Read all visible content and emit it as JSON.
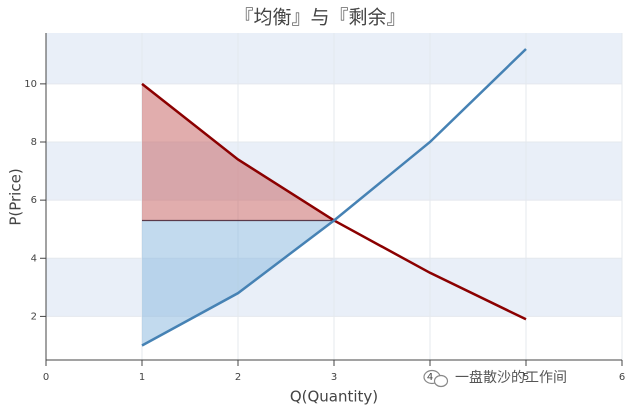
{
  "chart_data": {
    "type": "line",
    "title": "『均衡』与『剩余』",
    "x_label": "Q(Quantity)",
    "y_label": "P(Price)",
    "x": [
      1,
      2,
      3,
      4,
      5
    ],
    "series": [
      {
        "color": "#8b0000",
        "fill": "#c96a6a",
        "values": [
          10,
          7.4,
          5.3,
          3.5,
          1.9
        ]
      },
      {
        "color": "#4682b4",
        "fill": "#8fbbe0",
        "values": [
          1,
          2.8,
          5.3,
          8,
          11.2
        ]
      }
    ],
    "equilibrium": {
      "quantity": 3,
      "price": 5.3
    },
    "xlim": [
      0,
      6
    ],
    "xticks": [
      0,
      1,
      2,
      3,
      4,
      5,
      6
    ],
    "ylim": [
      0.5,
      11.75
    ],
    "yticks": [
      2,
      4,
      6,
      8,
      10
    ],
    "band_color": "#e9eff8",
    "watermark": "一盘散沙的工作间"
  }
}
